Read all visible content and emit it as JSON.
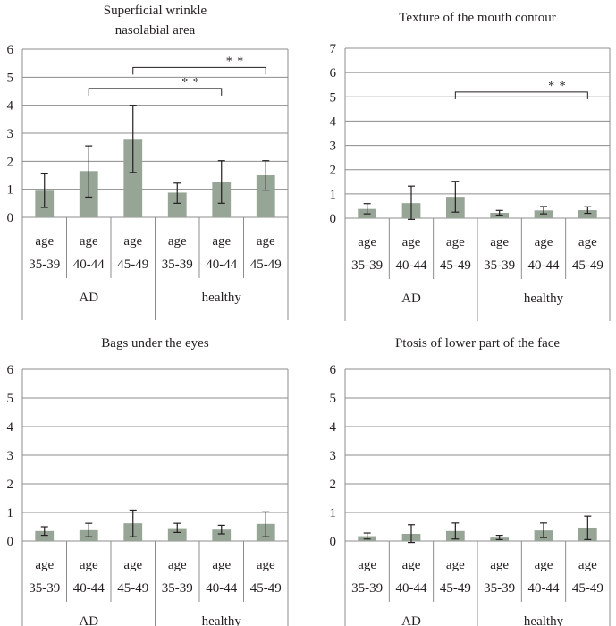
{
  "chart_data": [
    {
      "type": "bar",
      "title_lines": [
        "Superficial wrinkle",
        "nasolabial area"
      ],
      "categories": [
        "age 35-39",
        "age 40-44",
        "age 45-49",
        "age 35-39",
        "age 40-44",
        "age 45-49"
      ],
      "category_lines": [
        [
          "age",
          "35-39"
        ],
        [
          "age",
          "40-44"
        ],
        [
          "age",
          "45-49"
        ],
        [
          "age",
          "35-39"
        ],
        [
          "age",
          "40-44"
        ],
        [
          "age",
          "45-49"
        ]
      ],
      "groups": [
        "AD",
        "healthy"
      ],
      "values": [
        0.95,
        1.65,
        2.8,
        0.88,
        1.25,
        1.5
      ],
      "error_low": [
        0.35,
        0.72,
        1.6,
        0.5,
        0.5,
        0.97
      ],
      "error_high": [
        1.55,
        2.55,
        4.0,
        1.22,
        2.02,
        2.02
      ],
      "ylim": [
        0,
        6
      ],
      "yticks": [
        0,
        1,
        2,
        3,
        4,
        5,
        6
      ],
      "significance": [
        {
          "from": 2,
          "to": 5,
          "label": "* *",
          "y": 5.35
        },
        {
          "from": 1,
          "to": 4,
          "label": "* *",
          "y": 4.6
        }
      ],
      "bar_color": "#97a597",
      "grid": true
    },
    {
      "type": "bar",
      "title_lines": [
        "Texture of the mouth contour"
      ],
      "categories": [
        "age 35-39",
        "age 40-44",
        "age 45-49",
        "age 35-39",
        "age 40-44",
        "age 45-49"
      ],
      "category_lines": [
        [
          "age",
          "35-39"
        ],
        [
          "age",
          "40-44"
        ],
        [
          "age",
          "45-49"
        ],
        [
          "age",
          "35-39"
        ],
        [
          "age",
          "40-44"
        ],
        [
          "age",
          "45-49"
        ]
      ],
      "groups": [
        "AD",
        "healthy"
      ],
      "values": [
        0.38,
        0.62,
        0.88,
        0.22,
        0.32,
        0.33
      ],
      "error_low": [
        0.18,
        -0.05,
        0.25,
        0.13,
        0.18,
        0.2
      ],
      "error_high": [
        0.6,
        1.32,
        1.52,
        0.32,
        0.48,
        0.47
      ],
      "ylim": [
        0,
        7
      ],
      "yticks": [
        0,
        1,
        2,
        3,
        4,
        5,
        6,
        7
      ],
      "significance": [
        {
          "from": 2,
          "to": 5,
          "label": "* *",
          "y": 5.2
        }
      ],
      "bar_color": "#97a597",
      "grid": true
    },
    {
      "type": "bar",
      "title_lines": [
        "Bags under the eyes"
      ],
      "categories": [
        "age 35-39",
        "age 40-44",
        "age 45-49",
        "age 35-39",
        "age 40-44",
        "age 45-49"
      ],
      "category_lines": [
        [
          "age",
          "35-39"
        ],
        [
          "age",
          "40-44"
        ],
        [
          "age",
          "45-49"
        ],
        [
          "age",
          "35-39"
        ],
        [
          "age",
          "40-44"
        ],
        [
          "age",
          "45-49"
        ]
      ],
      "groups": [
        "AD",
        "healthy"
      ],
      "values": [
        0.35,
        0.38,
        0.62,
        0.45,
        0.4,
        0.6
      ],
      "error_low": [
        0.2,
        0.15,
        0.15,
        0.3,
        0.25,
        0.15
      ],
      "error_high": [
        0.5,
        0.62,
        1.08,
        0.62,
        0.55,
        1.02
      ],
      "ylim": [
        0,
        6
      ],
      "yticks": [
        0,
        1,
        2,
        3,
        4,
        5,
        6
      ],
      "significance": [],
      "bar_color": "#97a597",
      "grid": true
    },
    {
      "type": "bar",
      "title_lines": [
        "Ptosis of lower part of the face"
      ],
      "categories": [
        "age 35-39",
        "age 40-44",
        "age 45-49",
        "age 35-39",
        "age 40-44",
        "age 45-49"
      ],
      "category_lines": [
        [
          "age",
          "35-39"
        ],
        [
          "age",
          "40-44"
        ],
        [
          "age",
          "45-49"
        ],
        [
          "age",
          "35-39"
        ],
        [
          "age",
          "40-44"
        ],
        [
          "age",
          "45-49"
        ]
      ],
      "groups": [
        "AD",
        "healthy"
      ],
      "values": [
        0.17,
        0.25,
        0.35,
        0.12,
        0.37,
        0.47
      ],
      "error_low": [
        0.07,
        -0.05,
        0.07,
        0.05,
        0.12,
        0.05
      ],
      "error_high": [
        0.28,
        0.57,
        0.63,
        0.2,
        0.63,
        0.87
      ],
      "ylim": [
        0,
        6
      ],
      "yticks": [
        0,
        1,
        2,
        3,
        4,
        5,
        6
      ],
      "significance": [],
      "bar_color": "#97a597",
      "grid": true
    }
  ]
}
